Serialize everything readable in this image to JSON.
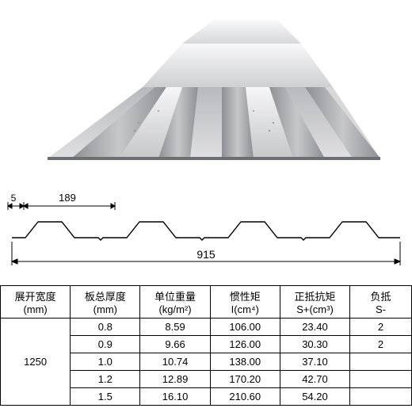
{
  "diagram": {
    "dim_small_left": "5",
    "dim_segment": "189",
    "dim_total": "915",
    "profile_color": "#000000",
    "background": "#ffffff",
    "label_fontsize": 13
  },
  "render3d": {
    "metal_light": "#e8e8ea",
    "metal_mid": "#c6c7c9",
    "metal_dark": "#8e8f93",
    "metal_shadow": "#6d6e72",
    "highlight": "#f6f6f8"
  },
  "table": {
    "columns": [
      "展开宽度\n(mm)",
      "板总厚度\n(mm)",
      "单位重量\n(kg/m²)",
      "惯性矩\nI(cm⁴)",
      "正抵抗矩\nS+(cm³)",
      "负抵\nS-"
    ],
    "col_widths": [
      "17%",
      "17%",
      "17%",
      "17%",
      "17%",
      "15%"
    ],
    "span_value": "1250",
    "rows": [
      [
        "0.8",
        "8.59",
        "106.00",
        "23.40",
        "2"
      ],
      [
        "0.9",
        "9.66",
        "126.00",
        "30.30",
        "2"
      ],
      [
        "1.0",
        "10.74",
        "138.00",
        "37.10",
        ""
      ],
      [
        "1.2",
        "12.89",
        "170.20",
        "42.70",
        ""
      ],
      [
        "1.5",
        "16.10",
        "210.60",
        "54.20",
        ""
      ]
    ],
    "border_color": "#000000",
    "cell_fontsize": 13
  }
}
